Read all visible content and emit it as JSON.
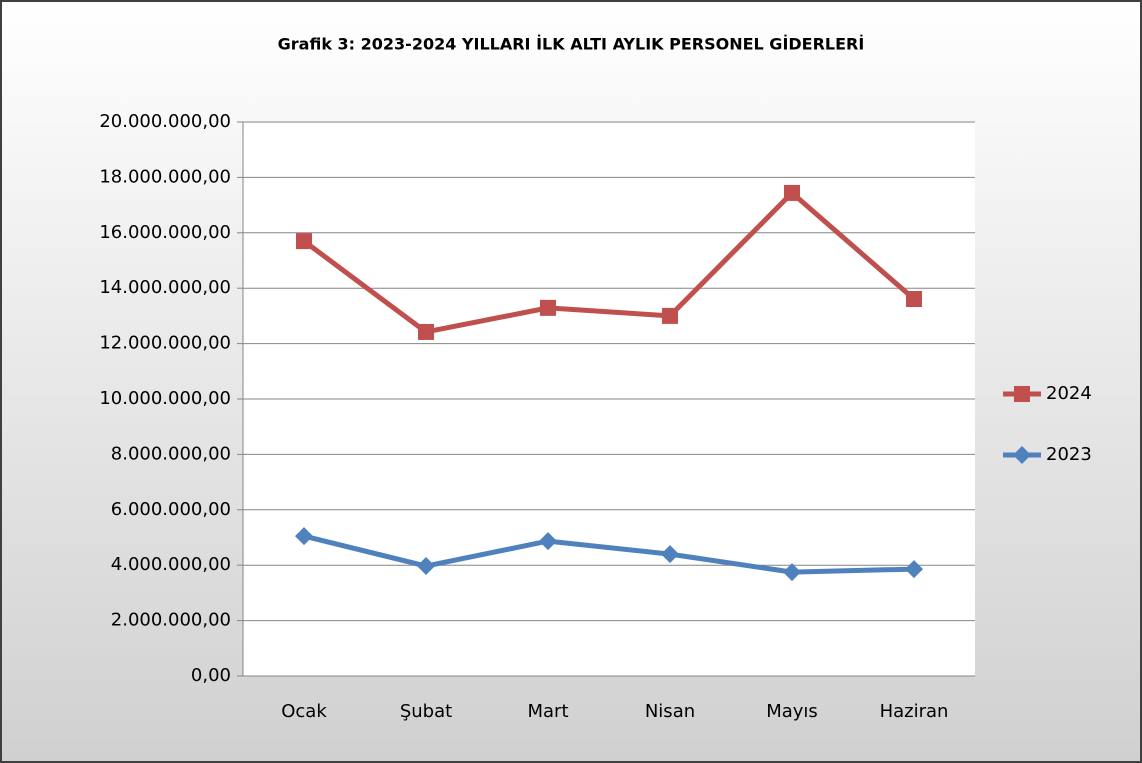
{
  "chart_data": {
    "type": "line",
    "title": "Grafik 3: 2023-2024  YILLARI İLK ALTI AYLIK PERSONEL GİDERLERİ",
    "categories": [
      "Ocak",
      "Şubat",
      "Mart",
      "Nisan",
      "Mayıs",
      "Haziran"
    ],
    "series": [
      {
        "name": "2024",
        "color": "#c0504d",
        "marker": "square",
        "values": [
          15700000,
          12420000,
          13290000,
          13000000,
          17440000,
          13610000
        ]
      },
      {
        "name": "2023",
        "color": "#4f81bd",
        "marker": "diamond",
        "values": [
          5050000,
          3970000,
          4870000,
          4400000,
          3750000,
          3860000
        ]
      }
    ],
    "ylim": [
      0,
      20000000
    ],
    "yticks": [
      {
        "value": 0,
        "label": "0,00"
      },
      {
        "value": 2000000,
        "label": "2.000.000,00"
      },
      {
        "value": 4000000,
        "label": "4.000.000,00"
      },
      {
        "value": 6000000,
        "label": "6.000.000,00"
      },
      {
        "value": 8000000,
        "label": "8.000.000,00"
      },
      {
        "value": 10000000,
        "label": "10.000.000,00"
      },
      {
        "value": 12000000,
        "label": "12.000.000,00"
      },
      {
        "value": 14000000,
        "label": "14.000.000,00"
      },
      {
        "value": 16000000,
        "label": "16.000.000,00"
      },
      {
        "value": 18000000,
        "label": "18.000.000,00"
      },
      {
        "value": 20000000,
        "label": "20.000.000,00"
      }
    ],
    "grid": true,
    "legend": "right"
  }
}
